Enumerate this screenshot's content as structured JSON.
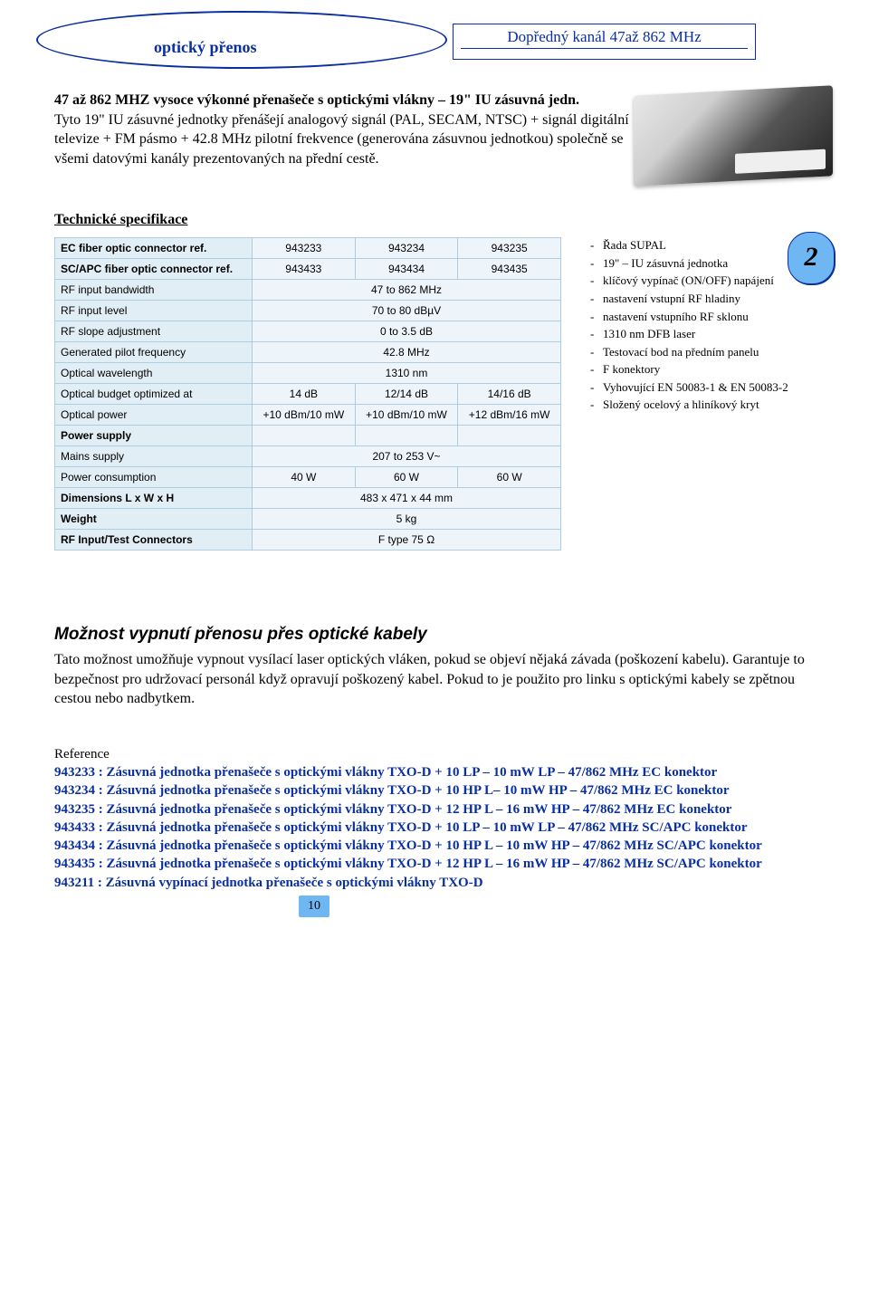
{
  "header": {
    "left_label": "optický přenos",
    "right_label": "Dopředný kanál 47až 862 MHz"
  },
  "intro": {
    "title": "47 až 862 MHZ vysoce výkonné přenašeče s optickými vlákny – 19\" IU zásuvná jedn.",
    "body": "Tyto 19\" IU zásuvné jednotky přenášejí analogový signál (PAL, SECAM, NTSC) + signál digitální televize + FM pásmo + 42.8 MHz pilotní frekvence (generována zásuvnou jednotkou) společně se všemi datovými kanály prezentovaných na přední cestě."
  },
  "spec_heading": "Technické specifikace",
  "spec_table": {
    "rows": [
      {
        "label": "EC fiber optic connector ref.",
        "bold": true,
        "c1": "943233",
        "c2": "943234",
        "c3": "943235"
      },
      {
        "label": "SC/APC fiber optic connector ref.",
        "bold": true,
        "c1": "943433",
        "c2": "943434",
        "c3": "943435"
      },
      {
        "label": "RF input bandwidth",
        "bold": false,
        "c1": "",
        "span": "47 to 862 MHz"
      },
      {
        "label": "RF input level",
        "bold": false,
        "c1": "",
        "span": "70 to 80 dBµV"
      },
      {
        "label": "RF slope adjustment",
        "bold": false,
        "c1": "",
        "span": "0 to 3.5 dB"
      },
      {
        "label": "Generated pilot frequency",
        "bold": false,
        "c1": "",
        "span": "42.8 MHz"
      },
      {
        "label": "Optical wavelength",
        "bold": false,
        "c1": "",
        "span": "1310 nm"
      },
      {
        "label": "Optical budget optimized at",
        "bold": false,
        "c1": "14 dB",
        "c2": "12/14 dB",
        "c3": "14/16 dB"
      },
      {
        "label": "Optical power",
        "bold": false,
        "c1": "+10 dBm/10 mW",
        "c2": "+10 dBm/10 mW",
        "c3": "+12 dBm/16 mW"
      },
      {
        "label": "Power supply",
        "bold": true,
        "c1": "",
        "c2": "",
        "c3": ""
      },
      {
        "label": "Mains supply",
        "bold": false,
        "c1": "",
        "span": "207 to 253 V~"
      },
      {
        "label": "Power consumption",
        "bold": false,
        "c1": "40 W",
        "c2": "60 W",
        "c3": "60 W"
      },
      {
        "label": "Dimensions L x W x H",
        "bold": true,
        "c1": "",
        "span": "483 x 471 x 44 mm"
      },
      {
        "label": "Weight",
        "bold": true,
        "c1": "",
        "span": "5 kg"
      },
      {
        "label": "RF Input/Test Connectors",
        "bold": true,
        "c1": "",
        "span": "F type 75 Ω"
      }
    ]
  },
  "side_badge": "2",
  "side_bullets": [
    "Řada SUPAL",
    "19\" – IU zásuvná jednotka",
    "klíčový vypínač (ON/OFF) napájení",
    "nastavení vstupní RF hladiny",
    "nastavení vstupního RF sklonu",
    "1310 nm DFB laser",
    "Testovací bod na předním panelu",
    "F konektory",
    "Vyhovující EN 50083-1 & EN 50083-2",
    "Složený ocelový a hliníkový kryt"
  ],
  "section": {
    "title": "Možnost vypnutí přenosu přes optické kabely",
    "body": "Tato možnost umožňuje vypnout vysílací laser optických vláken, pokud se objeví nějaká závada (poškození kabelu). Garantuje to bezpečnost pro udržovací personál když opravují poškozený kabel. Pokud to je použito pro linku s optickými kabely se zpětnou cestou nebo nadbytkem."
  },
  "refs_heading": "Reference",
  "refs": [
    "943233 : Zásuvná jednotka přenašeče s optickými vlákny TXO-D + 10 LP – 10 mW LP – 47/862 MHz EC konektor",
    "943234 : Zásuvná jednotka přenašeče s optickými vlákny TXO-D + 10 HP L– 10 mW HP – 47/862 MHz EC konektor",
    "943235 : Zásuvná jednotka přenašeče s optickými vlákny TXO-D + 12 HP L – 16 mW HP – 47/862 MHz EC konektor",
    "943433 : Zásuvná jednotka přenašeče s optickými vlákny TXO-D + 10 LP – 10 mW LP – 47/862 MHz SC/APC  konektor",
    "943434 : Zásuvná jednotka přenašeče s optickými vlákny TXO-D + 10 HP L – 10 mW HP – 47/862 MHz SC/APC  konektor",
    "943435 : Zásuvná jednotka přenašeče s optickými vlákny TXO-D + 12 HP L – 16 mW HP – 47/862 MHz SC/APC  konektor",
    "943211 : Zásuvná vypínací jednotka přenašeče s optickými vlákny TXO-D"
  ],
  "page_number": "10"
}
